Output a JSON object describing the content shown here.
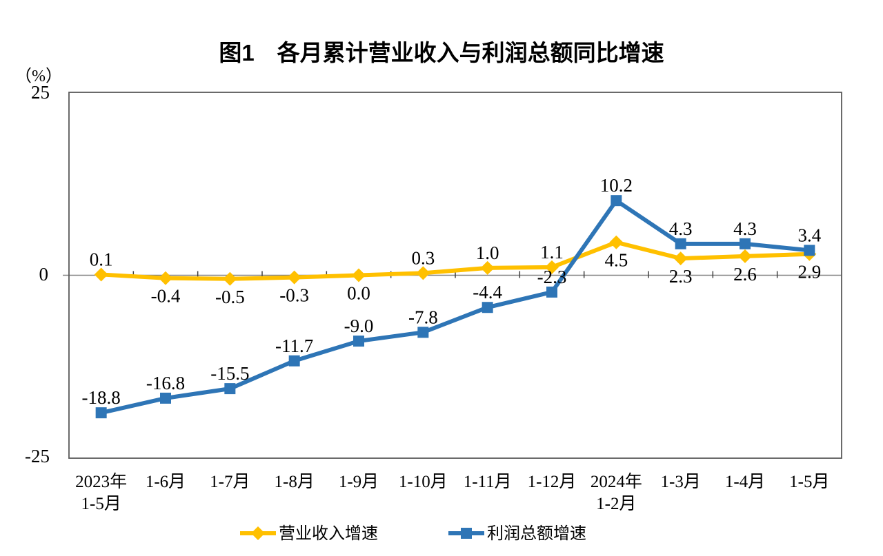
{
  "chart_data": {
    "type": "line",
    "title": "图1　各月累计营业收入与利润总额同比增速",
    "unit_label": "（%）",
    "ylim": [
      -25,
      25
    ],
    "ytick_labels": [
      "25",
      "0",
      "-25"
    ],
    "grid": false,
    "legend_position": "bottom",
    "categories": [
      [
        "2023年",
        "1-5月"
      ],
      [
        "1-6月"
      ],
      [
        "1-7月"
      ],
      [
        "1-8月"
      ],
      [
        "1-9月"
      ],
      [
        "1-10月"
      ],
      [
        "1-11月"
      ],
      [
        "1-12月"
      ],
      [
        "2024年",
        "1-2月"
      ],
      [
        "1-3月"
      ],
      [
        "1-4月"
      ],
      [
        "1-5月"
      ]
    ],
    "series": [
      {
        "name": "营业收入增速",
        "color": "#FFC000",
        "marker": "diamond",
        "values": [
          0.1,
          -0.4,
          -0.5,
          -0.3,
          0.0,
          0.3,
          1.0,
          1.1,
          4.5,
          2.3,
          2.6,
          2.9
        ],
        "label_side": [
          "above",
          "below",
          "below",
          "below",
          "below",
          "above",
          "above",
          "above",
          "below",
          "below",
          "below",
          "below"
        ]
      },
      {
        "name": "利润总额增速",
        "color": "#2E75B6",
        "marker": "square",
        "values": [
          -18.8,
          -16.8,
          -15.5,
          -11.7,
          -9.0,
          -7.8,
          -4.4,
          -2.3,
          10.2,
          4.3,
          4.3,
          3.4
        ],
        "label_side": [
          "above",
          "above",
          "above",
          "above",
          "above",
          "above",
          "above",
          "above",
          "above",
          "above",
          "above",
          "above"
        ]
      }
    ],
    "axis_colors": {
      "border": "#595959",
      "zero_line": "#808080",
      "tick": "#404040"
    }
  }
}
